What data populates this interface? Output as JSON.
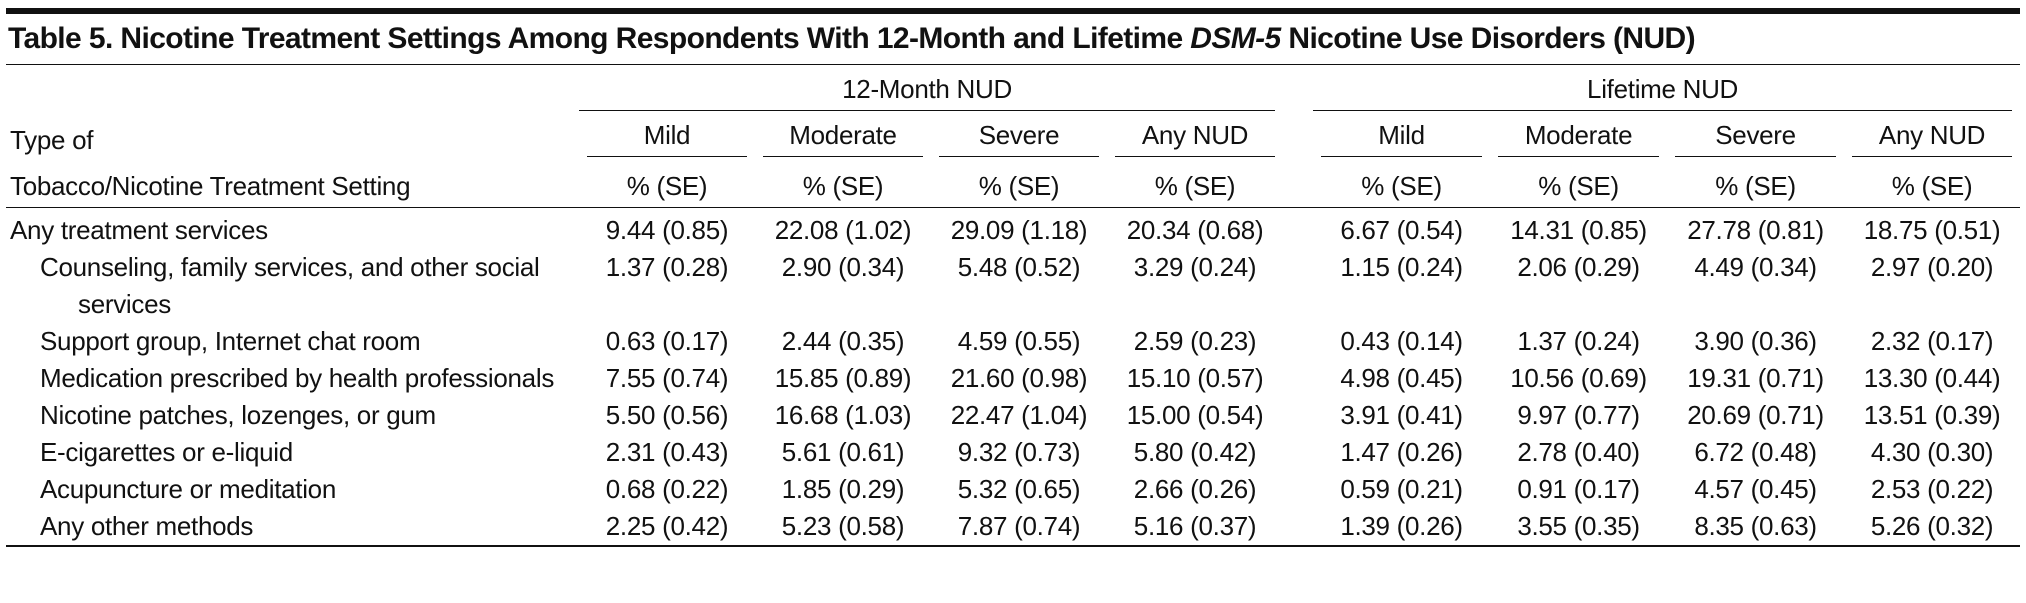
{
  "title": {
    "before": "Table 5. Nicotine Treatment Settings Among Respondents With 12-Month and Lifetime ",
    "italic": "DSM-5",
    "after": " Nicotine Use Disorders (NUD)"
  },
  "header": {
    "row_label": [
      "Type of",
      "Tobacco/Nicotine Treatment Setting"
    ],
    "groups": [
      "12-Month NUD",
      "Lifetime NUD"
    ],
    "columns": [
      "Mild",
      "Moderate",
      "Severe",
      "Any NUD",
      "Mild",
      "Moderate",
      "Severe",
      "Any NUD"
    ],
    "units": [
      "% (SE)",
      "% (SE)",
      "% (SE)",
      "% (SE)",
      "% (SE)",
      "% (SE)",
      "% (SE)",
      "% (SE)"
    ]
  },
  "rows": [
    {
      "label": "Any treatment services",
      "indent": false,
      "values": [
        "9.44 (0.85)",
        "22.08 (1.02)",
        "29.09 (1.18)",
        "20.34 (0.68)",
        "6.67 (0.54)",
        "14.31 (0.85)",
        "27.78 (0.81)",
        "18.75 (0.51)"
      ]
    },
    {
      "label": "Counseling, family services, and other social services",
      "indent": true,
      "values": [
        "1.37 (0.28)",
        "2.90 (0.34)",
        "5.48 (0.52)",
        "3.29 (0.24)",
        "1.15 (0.24)",
        "2.06 (0.29)",
        "4.49 (0.34)",
        "2.97 (0.20)"
      ]
    },
    {
      "label": "Support group, Internet chat room",
      "indent": true,
      "values": [
        "0.63 (0.17)",
        "2.44 (0.35)",
        "4.59 (0.55)",
        "2.59 (0.23)",
        "0.43 (0.14)",
        "1.37 (0.24)",
        "3.90 (0.36)",
        "2.32 (0.17)"
      ]
    },
    {
      "label": "Medication prescribed by health professionals",
      "indent": true,
      "values": [
        "7.55 (0.74)",
        "15.85 (0.89)",
        "21.60 (0.98)",
        "15.10 (0.57)",
        "4.98 (0.45)",
        "10.56 (0.69)",
        "19.31 (0.71)",
        "13.30 (0.44)"
      ]
    },
    {
      "label": "Nicotine patches, lozenges, or gum",
      "indent": true,
      "values": [
        "5.50 (0.56)",
        "16.68 (1.03)",
        "22.47 (1.04)",
        "15.00 (0.54)",
        "3.91 (0.41)",
        "9.97 (0.77)",
        "20.69 (0.71)",
        "13.51 (0.39)"
      ]
    },
    {
      "label": "E-cigarettes or e-liquid",
      "indent": true,
      "values": [
        "2.31 (0.43)",
        "5.61 (0.61)",
        "9.32 (0.73)",
        "5.80 (0.42)",
        "1.47 (0.26)",
        "2.78 (0.40)",
        "6.72 (0.48)",
        "4.30 (0.30)"
      ]
    },
    {
      "label": "Acupuncture or meditation",
      "indent": true,
      "values": [
        "0.68 (0.22)",
        "1.85 (0.29)",
        "5.32 (0.65)",
        "2.66 (0.26)",
        "0.59 (0.21)",
        "0.91 (0.17)",
        "4.57 (0.45)",
        "2.53 (0.22)"
      ]
    },
    {
      "label": "Any other methods",
      "indent": true,
      "values": [
        "2.25 (0.42)",
        "5.23 (0.58)",
        "7.87 (0.74)",
        "5.16 (0.37)",
        "1.39 (0.26)",
        "3.55 (0.35)",
        "8.35 (0.63)",
        "5.26 (0.32)"
      ]
    }
  ]
}
